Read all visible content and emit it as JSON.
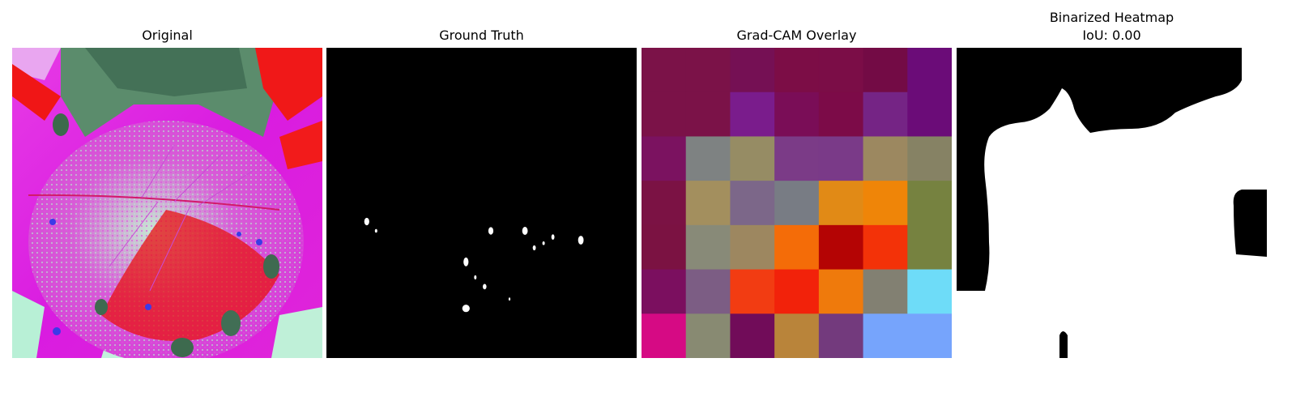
{
  "panels": [
    {
      "id": "original",
      "title": "Original"
    },
    {
      "id": "ground-truth",
      "title": "Ground Truth"
    },
    {
      "id": "gradcam-overlay",
      "title": "Grad-CAM Overlay"
    },
    {
      "id": "binarized-heatmap",
      "title": "Binarized Heatmap",
      "subtitle": "IoU: 0.00"
    }
  ],
  "gradcam_grid": {
    "rows": 7,
    "cols": 7,
    "colors": [
      [
        "#7b1248",
        "#7b1248",
        "#751054",
        "#7c0d46",
        "#7b0d47",
        "#730b45",
        "#6b0c78"
      ],
      [
        "#7b1248",
        "#7b1248",
        "#7a1c8c",
        "#7a0d57",
        "#7c0b48",
        "#752485",
        "#6b0c78"
      ],
      [
        "#7b1260",
        "#7e8282",
        "#968c64",
        "#7b3b87",
        "#7a3a88",
        "#9c8860",
        "#868264"
      ],
      [
        "#7b1244",
        "#a38f5e",
        "#7c6789",
        "#787c84",
        "#e18a16",
        "#ef8508",
        "#768240"
      ],
      [
        "#7b1242",
        "#888a78",
        "#9d8760",
        "#f46c08",
        "#b40404",
        "#f33208",
        "#768240"
      ],
      [
        "#7b0f5f",
        "#7c5d84",
        "#f23c12",
        "#f2220a",
        "#ef7a0c",
        "#828072",
        "#6edcf8"
      ],
      [
        "#d60a84",
        "#888a72",
        "#710c59",
        "#b9843a",
        "#733a7d",
        "#76a4fc",
        "#76a4fc"
      ]
    ]
  },
  "ground_truth_spots": [
    [
      0.13,
      0.56,
      0.008,
      0.012
    ],
    [
      0.16,
      0.59,
      0.004,
      0.006
    ],
    [
      0.53,
      0.59,
      0.008,
      0.012
    ],
    [
      0.64,
      0.59,
      0.009,
      0.013
    ],
    [
      0.67,
      0.645,
      0.005,
      0.008
    ],
    [
      0.73,
      0.61,
      0.005,
      0.009
    ],
    [
      0.7,
      0.63,
      0.004,
      0.006
    ],
    [
      0.82,
      0.62,
      0.009,
      0.014
    ],
    [
      0.45,
      0.69,
      0.008,
      0.014
    ],
    [
      0.48,
      0.74,
      0.004,
      0.007
    ],
    [
      0.51,
      0.77,
      0.006,
      0.009
    ],
    [
      0.59,
      0.81,
      0.003,
      0.005
    ],
    [
      0.45,
      0.84,
      0.012,
      0.012
    ]
  ]
}
